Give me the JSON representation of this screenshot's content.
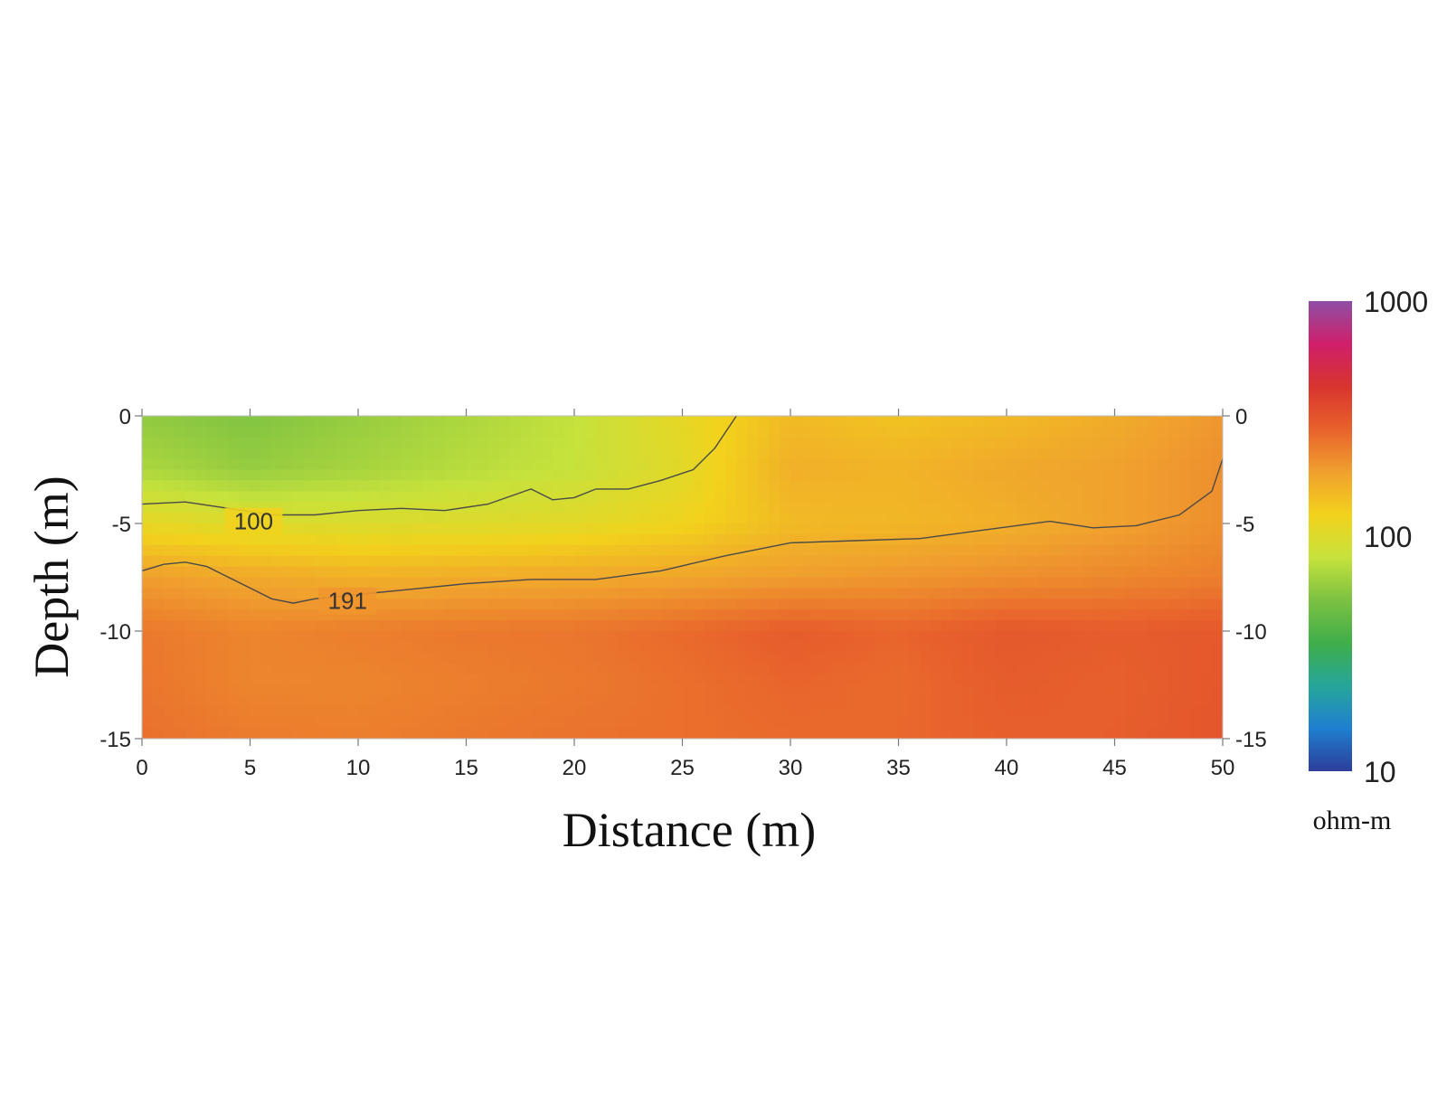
{
  "chart_data": {
    "type": "heatmap",
    "title": "",
    "xlabel": "Distance (m)",
    "ylabel": "Depth (m)",
    "xlim": [
      0,
      50
    ],
    "ylim": [
      -15,
      0
    ],
    "x_ticks": [
      0,
      5,
      10,
      15,
      20,
      25,
      30,
      35,
      40,
      45,
      50
    ],
    "y_ticks": [
      0,
      -5,
      -10,
      -15
    ],
    "grid": false,
    "colorbar": {
      "scale": "log",
      "range": [
        10,
        1000
      ],
      "ticks": [
        10,
        100,
        1000
      ],
      "unit": "ohm-m",
      "colors": [
        "#2c3e9a",
        "#1f7fd0",
        "#26a69a",
        "#3fae49",
        "#7cc142",
        "#c6e23c",
        "#f2d21c",
        "#f0a02e",
        "#e8622c",
        "#d8342e",
        "#cf1f6a",
        "#8e4fa5"
      ]
    },
    "contours": [
      {
        "level": 100,
        "label": "100",
        "points": [
          [
            0,
            -4.1
          ],
          [
            2,
            -4.0
          ],
          [
            4,
            -4.3
          ],
          [
            6,
            -4.6
          ],
          [
            8,
            -4.6
          ],
          [
            10,
            -4.4
          ],
          [
            12,
            -4.3
          ],
          [
            14,
            -4.4
          ],
          [
            16,
            -4.1
          ],
          [
            18,
            -3.4
          ],
          [
            19,
            -3.9
          ],
          [
            20,
            -3.8
          ],
          [
            21,
            -3.4
          ],
          [
            22.5,
            -3.4
          ],
          [
            24,
            -3.0
          ],
          [
            25.5,
            -2.5
          ],
          [
            26.5,
            -1.5
          ],
          [
            27.5,
            0
          ]
        ]
      },
      {
        "level": 191,
        "label": "191",
        "points": [
          [
            0,
            -7.2
          ],
          [
            1,
            -6.9
          ],
          [
            2,
            -6.8
          ],
          [
            3,
            -7.0
          ],
          [
            4,
            -7.5
          ],
          [
            5,
            -8.0
          ],
          [
            6,
            -8.5
          ],
          [
            7,
            -8.7
          ],
          [
            8,
            -8.5
          ],
          [
            10,
            -8.3
          ],
          [
            12,
            -8.1
          ],
          [
            15,
            -7.8
          ],
          [
            18,
            -7.6
          ],
          [
            21,
            -7.6
          ],
          [
            24,
            -7.2
          ],
          [
            27,
            -6.5
          ],
          [
            30,
            -5.9
          ],
          [
            33,
            -5.8
          ],
          [
            36,
            -5.7
          ],
          [
            39,
            -5.3
          ],
          [
            42,
            -4.9
          ],
          [
            44,
            -5.2
          ],
          [
            46,
            -5.1
          ],
          [
            48,
            -4.6
          ],
          [
            49.5,
            -3.5
          ],
          [
            50,
            -2.0
          ]
        ]
      }
    ],
    "resistivity_grid": {
      "x": [
        0,
        5,
        10,
        15,
        20,
        25,
        30,
        35,
        40,
        45,
        50
      ],
      "depths": [
        0,
        -2.5,
        -5,
        -7.5,
        -10,
        -12.5,
        -15
      ],
      "values": [
        [
          60,
          55,
          62,
          70,
          80,
          110,
          150,
          140,
          150,
          170,
          200
        ],
        [
          70,
          62,
          68,
          75,
          82,
          105,
          165,
          160,
          175,
          185,
          210
        ],
        [
          110,
          100,
          98,
          100,
          105,
          120,
          150,
          155,
          165,
          185,
          210
        ],
        [
          190,
          175,
          165,
          170,
          175,
          180,
          190,
          200,
          210,
          220,
          235
        ],
        [
          245,
          225,
          235,
          245,
          250,
          270,
          300,
          280,
          310,
          300,
          310
        ],
        [
          250,
          225,
          225,
          235,
          245,
          260,
          280,
          270,
          300,
          290,
          315
        ],
        [
          260,
          240,
          235,
          245,
          255,
          260,
          270,
          275,
          290,
          295,
          320
        ]
      ]
    }
  }
}
